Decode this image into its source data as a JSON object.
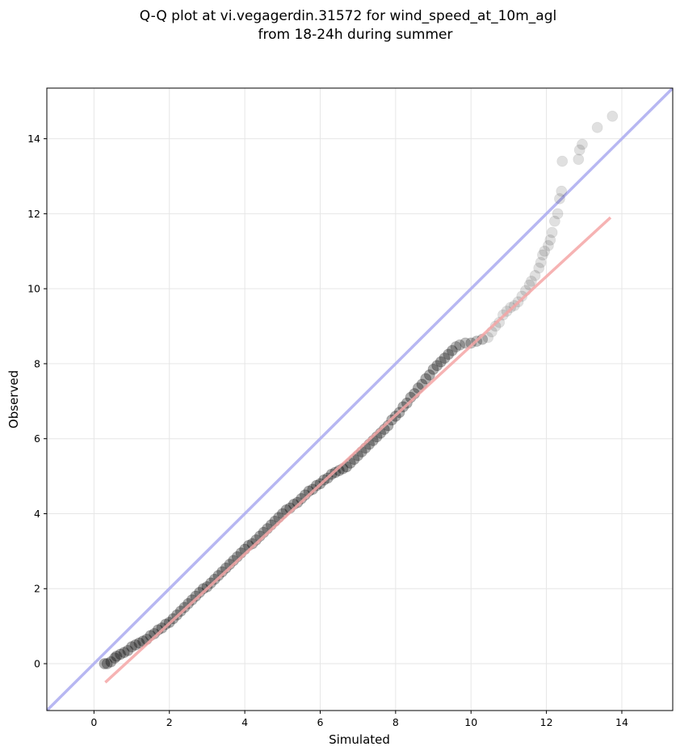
{
  "chart_data": {
    "type": "scatter",
    "title": [
      "Q-Q plot at vi.vegagerdin.31572 for wind_speed_at_10m_agl",
      "from 18-24h during summer"
    ],
    "xlabel": "Simulated",
    "ylabel": "Observed",
    "xlim": [
      -1.25,
      15.35
    ],
    "ylim": [
      -1.25,
      15.35
    ],
    "xticks": [
      0,
      2,
      4,
      6,
      8,
      10,
      12,
      14
    ],
    "yticks": [
      0,
      2,
      4,
      6,
      8,
      10,
      12,
      14
    ],
    "grid": true,
    "reference_line": {
      "name": "",
      "color": "#aaaaf0",
      "x": [
        -1.25,
        15.35
      ],
      "y": [
        -1.25,
        15.35
      ]
    },
    "fit_line": {
      "name": "",
      "color": "#f4a6a6",
      "x": [
        0.3,
        13.7
      ],
      "y": [
        -0.5,
        11.9
      ]
    },
    "point_color": "#000000",
    "points": [
      [
        0.28,
        0.0
      ],
      [
        0.35,
        0.0
      ],
      [
        0.45,
        0.05
      ],
      [
        0.55,
        0.15
      ],
      [
        0.6,
        0.2
      ],
      [
        0.7,
        0.25
      ],
      [
        0.8,
        0.3
      ],
      [
        0.9,
        0.35
      ],
      [
        1.0,
        0.45
      ],
      [
        1.1,
        0.5
      ],
      [
        1.2,
        0.55
      ],
      [
        1.3,
        0.6
      ],
      [
        1.4,
        0.65
      ],
      [
        1.5,
        0.75
      ],
      [
        1.6,
        0.8
      ],
      [
        1.7,
        0.9
      ],
      [
        1.8,
        0.95
      ],
      [
        1.9,
        1.05
      ],
      [
        2.0,
        1.1
      ],
      [
        2.1,
        1.2
      ],
      [
        2.2,
        1.3
      ],
      [
        2.3,
        1.4
      ],
      [
        2.4,
        1.5
      ],
      [
        2.5,
        1.6
      ],
      [
        2.6,
        1.7
      ],
      [
        2.7,
        1.8
      ],
      [
        2.8,
        1.9
      ],
      [
        2.9,
        2.0
      ],
      [
        3.0,
        2.05
      ],
      [
        3.1,
        2.15
      ],
      [
        3.2,
        2.25
      ],
      [
        3.3,
        2.35
      ],
      [
        3.4,
        2.45
      ],
      [
        3.5,
        2.55
      ],
      [
        3.6,
        2.65
      ],
      [
        3.7,
        2.75
      ],
      [
        3.8,
        2.85
      ],
      [
        3.9,
        2.95
      ],
      [
        4.0,
        3.05
      ],
      [
        4.1,
        3.15
      ],
      [
        4.2,
        3.2
      ],
      [
        4.3,
        3.3
      ],
      [
        4.4,
        3.4
      ],
      [
        4.5,
        3.5
      ],
      [
        4.6,
        3.6
      ],
      [
        4.7,
        3.7
      ],
      [
        4.8,
        3.8
      ],
      [
        4.9,
        3.9
      ],
      [
        5.0,
        4.0
      ],
      [
        5.1,
        4.1
      ],
      [
        5.2,
        4.15
      ],
      [
        5.3,
        4.25
      ],
      [
        5.4,
        4.3
      ],
      [
        5.5,
        4.4
      ],
      [
        5.6,
        4.5
      ],
      [
        5.7,
        4.6
      ],
      [
        5.8,
        4.65
      ],
      [
        5.9,
        4.75
      ],
      [
        6.0,
        4.8
      ],
      [
        6.1,
        4.9
      ],
      [
        6.2,
        4.95
      ],
      [
        6.3,
        5.05
      ],
      [
        6.4,
        5.1
      ],
      [
        6.5,
        5.15
      ],
      [
        6.6,
        5.2
      ],
      [
        6.7,
        5.25
      ],
      [
        6.8,
        5.35
      ],
      [
        6.9,
        5.45
      ],
      [
        7.0,
        5.55
      ],
      [
        7.1,
        5.65
      ],
      [
        7.2,
        5.75
      ],
      [
        7.3,
        5.85
      ],
      [
        7.4,
        5.95
      ],
      [
        7.5,
        6.05
      ],
      [
        7.6,
        6.15
      ],
      [
        7.7,
        6.25
      ],
      [
        7.8,
        6.35
      ],
      [
        7.9,
        6.5
      ],
      [
        8.0,
        6.6
      ],
      [
        8.1,
        6.7
      ],
      [
        8.2,
        6.85
      ],
      [
        8.3,
        6.95
      ],
      [
        8.4,
        7.1
      ],
      [
        8.5,
        7.2
      ],
      [
        8.6,
        7.35
      ],
      [
        8.7,
        7.45
      ],
      [
        8.8,
        7.6
      ],
      [
        8.9,
        7.7
      ],
      [
        9.0,
        7.85
      ],
      [
        9.1,
        7.95
      ],
      [
        9.2,
        8.05
      ],
      [
        9.3,
        8.15
      ],
      [
        9.4,
        8.25
      ],
      [
        9.5,
        8.35
      ],
      [
        9.6,
        8.45
      ],
      [
        9.7,
        8.5
      ],
      [
        9.85,
        8.55
      ],
      [
        10.0,
        8.55
      ],
      [
        10.15,
        8.6
      ],
      [
        10.3,
        8.65
      ],
      [
        10.45,
        8.7
      ],
      [
        10.55,
        8.85
      ],
      [
        10.65,
        9.0
      ],
      [
        10.75,
        9.1
      ],
      [
        10.85,
        9.3
      ],
      [
        10.95,
        9.4
      ],
      [
        11.05,
        9.5
      ],
      [
        11.15,
        9.55
      ],
      [
        11.25,
        9.65
      ],
      [
        11.35,
        9.8
      ],
      [
        11.45,
        9.95
      ],
      [
        11.55,
        10.1
      ],
      [
        11.6,
        10.2
      ],
      [
        11.7,
        10.35
      ],
      [
        11.8,
        10.55
      ],
      [
        11.85,
        10.7
      ],
      [
        11.9,
        10.9
      ],
      [
        11.95,
        11.0
      ],
      [
        12.05,
        11.15
      ],
      [
        12.1,
        11.3
      ],
      [
        12.15,
        11.5
      ],
      [
        12.22,
        11.8
      ],
      [
        12.3,
        12.0
      ],
      [
        12.35,
        12.4
      ],
      [
        12.4,
        12.6
      ],
      [
        12.42,
        13.4
      ],
      [
        12.85,
        13.45
      ],
      [
        12.88,
        13.7
      ],
      [
        12.95,
        13.85
      ],
      [
        13.35,
        14.3
      ],
      [
        13.75,
        14.6
      ]
    ]
  }
}
